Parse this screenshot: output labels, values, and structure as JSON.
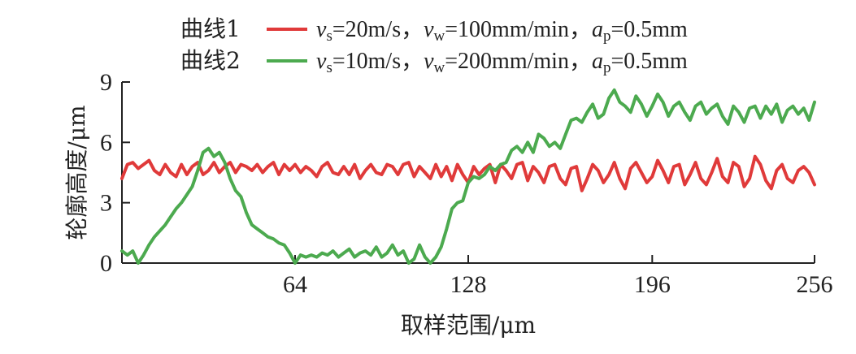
{
  "chart_data": {
    "type": "line",
    "title": "",
    "xlabel": "取样范围/μm",
    "ylabel": "轮廓高度/μm",
    "xlim": [
      0,
      256
    ],
    "ylim": [
      0,
      9
    ],
    "xticks": [
      64,
      128,
      196,
      256
    ],
    "xtick_labels": [
      "64",
      "128",
      "196",
      "256"
    ],
    "yticks": [
      0,
      3,
      6,
      9
    ],
    "ytick_labels": [
      "0",
      "3",
      "6",
      "9"
    ],
    "grid": false,
    "legend": {
      "placement": "top",
      "entries": [
        {
          "name": "曲线1",
          "color": "#e03a3a",
          "params": [
            {
              "var": "v",
              "sub": "s",
              "val": "=20m/s，"
            },
            {
              "var": "v",
              "sub": "w",
              "val": "=100mm/min，"
            },
            {
              "var": "a",
              "sub": "p",
              "val": "=0.5mm"
            }
          ]
        },
        {
          "name": "曲线2",
          "color": "#4caa4f",
          "params": [
            {
              "var": "v",
              "sub": "s",
              "val": "=10m/s，"
            },
            {
              "var": "v",
              "sub": "w",
              "val": "=200mm/min，"
            },
            {
              "var": "a",
              "sub": "p",
              "val": "=0.5mm"
            }
          ]
        }
      ]
    },
    "series": [
      {
        "name": "曲线1",
        "color": "#e03a3a",
        "x": [
          0,
          2,
          4,
          6,
          8,
          10,
          12,
          14,
          16,
          18,
          20,
          22,
          24,
          26,
          28,
          30,
          32,
          34,
          36,
          38,
          40,
          42,
          44,
          46,
          48,
          50,
          52,
          54,
          56,
          58,
          60,
          62,
          64,
          66,
          68,
          70,
          72,
          74,
          76,
          78,
          80,
          82,
          84,
          86,
          88,
          90,
          92,
          94,
          96,
          98,
          100,
          102,
          104,
          106,
          108,
          110,
          112,
          114,
          116,
          118,
          120,
          122,
          124,
          126,
          128,
          130,
          132,
          134,
          136,
          138,
          140,
          142,
          144,
          146,
          148,
          150,
          152,
          154,
          156,
          158,
          160,
          162,
          164,
          166,
          168,
          170,
          172,
          174,
          176,
          178,
          180,
          182,
          184,
          186,
          188,
          190,
          192,
          194,
          196,
          198,
          200,
          202,
          204,
          206,
          208,
          210,
          212,
          214,
          216,
          218,
          220,
          222,
          224,
          226,
          228,
          230,
          232,
          234,
          236,
          238,
          240,
          242,
          244,
          246,
          248,
          250,
          252,
          254,
          256
        ],
        "y": [
          4.2,
          4.9,
          5.0,
          4.7,
          4.9,
          5.1,
          4.6,
          4.4,
          4.9,
          4.5,
          4.3,
          4.9,
          4.4,
          4.8,
          5.0,
          4.4,
          4.6,
          5.0,
          4.5,
          4.8,
          5.0,
          4.5,
          4.9,
          4.8,
          4.6,
          4.9,
          4.5,
          4.8,
          5.0,
          4.4,
          4.9,
          4.6,
          4.9,
          4.5,
          4.8,
          4.6,
          4.3,
          4.8,
          5.0,
          4.5,
          4.4,
          4.8,
          4.4,
          4.9,
          4.2,
          4.6,
          4.9,
          4.5,
          4.4,
          4.9,
          4.8,
          4.4,
          4.9,
          5.0,
          4.3,
          4.8,
          4.5,
          4.2,
          4.9,
          4.3,
          4.8,
          4.1,
          4.9,
          4.4,
          4.0,
          4.8,
          4.4,
          4.7,
          4.9,
          4.0,
          4.9,
          4.6,
          4.2,
          4.9,
          5.0,
          4.1,
          4.8,
          4.5,
          4.0,
          4.8,
          4.9,
          4.2,
          3.9,
          4.7,
          4.8,
          3.6,
          4.2,
          4.9,
          4.6,
          4.0,
          4.4,
          5.0,
          4.2,
          3.7,
          4.7,
          5.0,
          4.5,
          4.0,
          4.3,
          5.1,
          4.6,
          4.0,
          4.8,
          4.9,
          3.9,
          4.4,
          5.0,
          4.2,
          3.9,
          4.5,
          5.2,
          4.3,
          4.0,
          5.0,
          4.8,
          3.8,
          4.2,
          5.3,
          4.9,
          4.1,
          3.7,
          4.6,
          4.9,
          4.2,
          4.0,
          4.6,
          4.8,
          4.5,
          3.9
        ]
      },
      {
        "name": "曲线2",
        "color": "#4caa4f",
        "x": [
          0,
          2,
          4,
          6,
          8,
          10,
          12,
          14,
          16,
          18,
          20,
          22,
          24,
          26,
          28,
          30,
          32,
          34,
          36,
          38,
          40,
          42,
          44,
          46,
          48,
          50,
          52,
          54,
          56,
          58,
          60,
          62,
          64,
          66,
          68,
          70,
          72,
          74,
          76,
          78,
          80,
          82,
          84,
          86,
          88,
          90,
          92,
          94,
          96,
          98,
          100,
          102,
          104,
          106,
          108,
          110,
          112,
          114,
          116,
          118,
          120,
          122,
          124,
          126,
          128,
          130,
          132,
          134,
          136,
          138,
          140,
          142,
          144,
          146,
          148,
          150,
          152,
          154,
          156,
          158,
          160,
          162,
          164,
          166,
          168,
          170,
          172,
          174,
          176,
          178,
          180,
          182,
          184,
          186,
          188,
          190,
          192,
          194,
          196,
          198,
          200,
          202,
          204,
          206,
          208,
          210,
          212,
          214,
          216,
          218,
          220,
          222,
          224,
          226,
          228,
          230,
          232,
          234,
          236,
          238,
          240,
          242,
          244,
          246,
          248,
          250,
          252,
          254,
          256
        ],
        "y": [
          0.6,
          0.4,
          0.6,
          0.0,
          0.4,
          0.9,
          1.3,
          1.6,
          1.9,
          2.3,
          2.7,
          3.0,
          3.4,
          3.8,
          4.6,
          5.5,
          5.7,
          5.3,
          5.5,
          5.0,
          4.2,
          3.6,
          3.3,
          2.5,
          1.9,
          1.7,
          1.5,
          1.3,
          1.2,
          1.0,
          0.9,
          0.5,
          0.0,
          0.4,
          0.3,
          0.4,
          0.3,
          0.5,
          0.4,
          0.6,
          0.3,
          0.5,
          0.7,
          0.3,
          0.5,
          0.6,
          0.4,
          0.8,
          0.3,
          0.5,
          0.9,
          0.4,
          0.6,
          0.0,
          0.2,
          0.9,
          0.3,
          0.0,
          0.3,
          0.8,
          1.7,
          2.7,
          3.0,
          3.1,
          4.0,
          4.3,
          4.2,
          4.4,
          4.8,
          4.6,
          4.9,
          5.0,
          5.6,
          5.8,
          5.5,
          6.0,
          5.5,
          6.4,
          6.2,
          5.8,
          6.0,
          5.7,
          6.4,
          7.1,
          7.2,
          7.0,
          7.5,
          7.9,
          7.2,
          7.4,
          8.2,
          8.6,
          8.0,
          7.8,
          7.5,
          8.3,
          7.9,
          7.3,
          7.8,
          8.4,
          8.0,
          7.3,
          7.8,
          8.0,
          7.5,
          7.1,
          7.8,
          8.0,
          7.4,
          7.7,
          7.9,
          7.3,
          6.9,
          7.8,
          7.5,
          7.0,
          7.7,
          7.8,
          7.2,
          7.8,
          7.4,
          7.9,
          7.0,
          7.6,
          7.8,
          7.4,
          7.7,
          7.1,
          8.0
        ]
      }
    ]
  }
}
